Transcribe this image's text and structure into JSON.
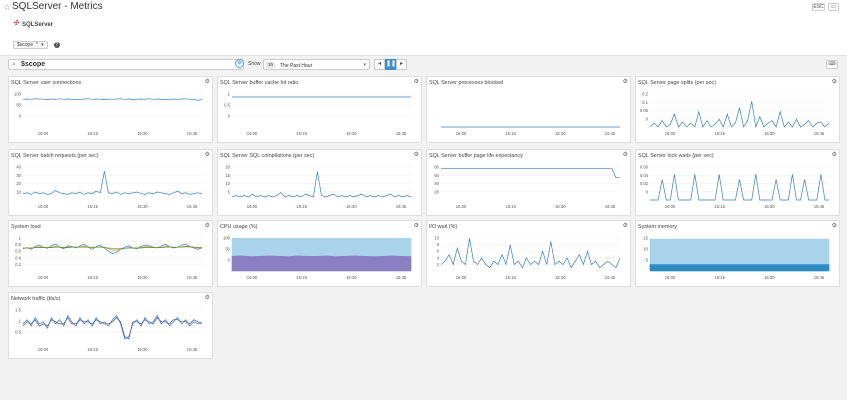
{
  "header": {
    "title": "SQLServer - Metrics",
    "esc_label": "ESC",
    "logo_text": "SQLServer",
    "template_variable": "$scope",
    "template_value": "*"
  },
  "toolbar": {
    "search_value": "$scope",
    "show_label": "Show",
    "time_badge": "1h",
    "time_range": "The Past Hour"
  },
  "widgets": [
    {
      "title": "SQL Server user connections",
      "yticks": [
        "100",
        "50",
        "0"
      ],
      "ylim": [
        0,
        130
      ],
      "series": [
        {
          "color": "#3b7fb6",
          "values": [
            100,
            101,
            100,
            102,
            101,
            100,
            99,
            101,
            100,
            102,
            100,
            101,
            100,
            99,
            100,
            101,
            102,
            100,
            101,
            100,
            99,
            101,
            100,
            101,
            102,
            100,
            101,
            99,
            100,
            101,
            100,
            102,
            100,
            101,
            100,
            99,
            100,
            101,
            100,
            101,
            102,
            100,
            99,
            96,
            100
          ]
        }
      ]
    },
    {
      "title": "SQL Server buffer cache hit ratio",
      "yticks": [
        "1",
        "0.5",
        "0"
      ],
      "ylim": [
        0,
        1.2
      ],
      "series": [
        {
          "color": "#3b7fb6",
          "values": [
            1,
            1,
            1,
            1,
            1,
            1,
            1,
            1,
            1,
            1,
            1,
            1,
            1,
            1,
            1,
            1,
            1,
            1,
            1,
            1
          ]
        }
      ]
    },
    {
      "title": "SQL Server processes blocked",
      "yticks": [],
      "ylim": [
        0,
        1
      ],
      "series": [
        {
          "color": "#3b7fb6",
          "values": [
            0,
            0,
            0,
            0,
            0,
            0,
            0,
            0,
            0,
            0,
            0,
            0,
            0,
            0,
            0,
            0,
            0,
            0,
            0,
            0
          ]
        }
      ]
    },
    {
      "title": "SQL Server page splits (per sec)",
      "yticks": [
        "0.2",
        "0.1",
        "0.05",
        "0"
      ],
      "ylim": [
        0,
        0.28
      ],
      "series": [
        {
          "color": "#3b7fb6",
          "values": [
            0,
            0.03,
            0,
            0.05,
            0,
            0.02,
            0.1,
            0,
            0.04,
            0,
            0.03,
            0,
            0.12,
            0,
            0.05,
            0,
            0.02,
            0.06,
            0,
            0.1,
            0,
            0.03,
            0.15,
            0,
            0.05,
            0.2,
            0,
            0.08,
            0,
            0.03,
            0.05,
            0,
            0.12,
            0,
            0.04,
            0,
            0.06,
            0,
            0.02,
            0.05,
            0,
            0.03,
            0.04,
            0,
            0.03
          ]
        }
      ]
    },
    {
      "title": "SQL Server batch requests (per sec)",
      "yticks": [
        "40",
        "30",
        "20",
        "10"
      ],
      "ylim": [
        0,
        45
      ],
      "series": [
        {
          "color": "#3b7fb6",
          "values": [
            8,
            9,
            7,
            10,
            8,
            9,
            7,
            8,
            12,
            9,
            8,
            7,
            9,
            8,
            10,
            7,
            9,
            8,
            11,
            9,
            36,
            9,
            8,
            10,
            7,
            9,
            8,
            9,
            10,
            8,
            7,
            9,
            8,
            10,
            9,
            8,
            7,
            9,
            11,
            8,
            9,
            7,
            8,
            9,
            8
          ]
        }
      ]
    },
    {
      "title": "SQL Server SQL compilations (per sec)",
      "yticks": [
        "20",
        "15",
        "10",
        "5"
      ],
      "ylim": [
        0,
        24
      ],
      "series": [
        {
          "color": "#3b7fb6",
          "values": [
            2,
            3,
            2,
            3,
            2,
            4,
            2,
            3,
            2,
            3,
            2,
            3,
            5,
            2,
            3,
            2,
            3,
            2,
            4,
            3,
            2,
            19,
            3,
            2,
            3,
            4,
            2,
            3,
            2,
            3,
            2,
            3,
            4,
            2,
            3,
            2,
            3,
            2,
            3,
            4,
            2,
            3,
            2,
            3,
            2
          ]
        }
      ]
    },
    {
      "title": "SQL Server buffer page life expectancy",
      "yticks": [
        "80",
        "60",
        "40",
        "20"
      ],
      "ylim": [
        0,
        100
      ],
      "series": [
        {
          "color": "#3b7fb6",
          "values": [
            87,
            87,
            87,
            87,
            87,
            87,
            87,
            87,
            87,
            87,
            87,
            87,
            87,
            87,
            87,
            87,
            87,
            87,
            87,
            87,
            87,
            87,
            87,
            87,
            87,
            87,
            87,
            87,
            87,
            87,
            87,
            87,
            87,
            87,
            87,
            87,
            87,
            87,
            87,
            87,
            87,
            87,
            87,
            62,
            62
          ]
        }
      ]
    },
    {
      "title": "SQL Server lock waits (per sec)",
      "yticks": [
        "0.06",
        "0.04",
        "0.02",
        "0"
      ],
      "ylim": [
        0,
        0.07
      ],
      "series": [
        {
          "color": "#3b7fb6",
          "values": [
            0,
            0,
            0,
            0.04,
            0,
            0,
            0.05,
            0,
            0,
            0,
            0,
            0.05,
            0,
            0,
            0,
            0,
            0,
            0.05,
            0,
            0,
            0,
            0,
            0.04,
            0,
            0,
            0,
            0.05,
            0,
            0,
            0,
            0,
            0.04,
            0,
            0,
            0,
            0.05,
            0,
            0,
            0.04,
            0,
            0,
            0,
            0.05,
            0,
            0
          ]
        }
      ]
    },
    {
      "title": "System load",
      "yticks": [
        "1",
        "0.8",
        "0.6",
        "0.4",
        "0.2"
      ],
      "ylim": [
        0,
        1
      ],
      "series": [
        {
          "color": "#3b7fb6",
          "values": [
            0.62,
            0.65,
            0.6,
            0.68,
            0.72,
            0.66,
            0.63,
            0.7,
            0.75,
            0.66,
            0.62,
            0.7,
            0.68,
            0.64,
            0.7,
            0.74,
            0.66,
            0.6,
            0.68,
            0.72,
            0.64,
            0.55,
            0.48,
            0.52,
            0.6,
            0.66,
            0.7,
            0.64,
            0.62,
            0.68,
            0.72,
            0.7,
            0.66,
            0.64,
            0.7,
            0.74,
            0.68,
            0.64,
            0.66,
            0.72,
            0.75,
            0.68,
            0.64,
            0.6,
            0.64
          ]
        },
        {
          "color": "#e57f2c",
          "values": [
            0.63,
            0.64,
            0.63,
            0.65,
            0.67,
            0.66,
            0.65,
            0.66,
            0.68,
            0.67,
            0.65,
            0.66,
            0.67,
            0.66,
            0.67,
            0.68,
            0.67,
            0.65,
            0.66,
            0.67,
            0.66,
            0.62,
            0.58,
            0.58,
            0.6,
            0.63,
            0.65,
            0.64,
            0.64,
            0.65,
            0.67,
            0.67,
            0.66,
            0.65,
            0.66,
            0.68,
            0.67,
            0.66,
            0.66,
            0.67,
            0.69,
            0.68,
            0.66,
            0.64,
            0.64
          ]
        },
        {
          "color": "#4a9a3f",
          "values": [
            0.64,
            0.64,
            0.64,
            0.65,
            0.65,
            0.65,
            0.65,
            0.65,
            0.66,
            0.66,
            0.65,
            0.65,
            0.66,
            0.66,
            0.66,
            0.66,
            0.66,
            0.66,
            0.66,
            0.66,
            0.65,
            0.64,
            0.63,
            0.62,
            0.62,
            0.63,
            0.64,
            0.64,
            0.64,
            0.64,
            0.65,
            0.65,
            0.65,
            0.65,
            0.65,
            0.66,
            0.66,
            0.66,
            0.66,
            0.66,
            0.67,
            0.67,
            0.66,
            0.66,
            0.65
          ]
        }
      ]
    },
    {
      "title": "CPU usage (%)",
      "yticks": [
        "100",
        "50",
        "0"
      ],
      "ylim": [
        0,
        110
      ],
      "area": true,
      "series": [
        {
          "color": "#8a7fc0",
          "values": [
            45,
            46,
            44,
            45,
            46,
            45,
            44,
            46,
            45,
            45,
            46,
            44,
            45,
            46,
            45,
            44,
            45,
            46,
            45,
            44
          ]
        },
        {
          "color": "#a9d3ea",
          "values": [
            100,
            100,
            100,
            100,
            100,
            100,
            100,
            100,
            100,
            100,
            100,
            100,
            100,
            100,
            100,
            100,
            100,
            100,
            100,
            100
          ]
        }
      ]
    },
    {
      "title": "I/O wait (%)",
      "yticks": [
        "10",
        "8",
        "6",
        "4",
        "2"
      ],
      "ylim": [
        0,
        11
      ],
      "series": [
        {
          "color": "#3b7fb6",
          "values": [
            2,
            3,
            5,
            2,
            7,
            3,
            2,
            10,
            3,
            2,
            4,
            2,
            1,
            3,
            2,
            5,
            2,
            8,
            2,
            3,
            1,
            4,
            2,
            3,
            2,
            6,
            2,
            9,
            2,
            3,
            2,
            4,
            1,
            3,
            5,
            2,
            6,
            2,
            3,
            1,
            2,
            3,
            2,
            1,
            4
          ]
        }
      ]
    },
    {
      "title": "System memory",
      "yticks": [
        "15",
        "10",
        "5"
      ],
      "ylim": [
        0,
        17
      ],
      "area": true,
      "series": [
        {
          "color": "#2b8cc4",
          "values": [
            3,
            3,
            3,
            3,
            3,
            3,
            3,
            3,
            3,
            3,
            3,
            3,
            3,
            3,
            3,
            3,
            3,
            3,
            3,
            3
          ]
        },
        {
          "color": "#a9d3ea",
          "values": [
            15,
            15,
            15,
            15,
            15,
            15,
            15,
            15,
            15,
            15,
            15,
            15,
            15,
            15,
            15,
            15,
            15,
            15,
            15,
            15
          ]
        }
      ]
    },
    {
      "title": "Network traffic (kb/s)",
      "yticks": [
        "1.5",
        "1",
        "0.5"
      ],
      "ylim": [
        0,
        1.7
      ],
      "series": [
        {
          "color": "#3b7fb6",
          "values": [
            0.9,
            1.1,
            0.8,
            1.2,
            0.9,
            1.0,
            0.7,
            1.2,
            0.9,
            1.1,
            0.8,
            1.3,
            1.0,
            0.8,
            1.2,
            0.9,
            1.1,
            0.8,
            1.2,
            0.9,
            1.0,
            0.8,
            1.1,
            1.3,
            0.9,
            0.2,
            0.3,
            0.9,
            1.1,
            0.8,
            1.2,
            0.9,
            1.0,
            1.3,
            0.9,
            1.1,
            0.8,
            1.0,
            1.2,
            0.9,
            1.1,
            0.8,
            1.0,
            0.9,
            1.0
          ]
        },
        {
          "color": "#4b4f9e",
          "values": [
            0.8,
            1.0,
            0.9,
            1.1,
            0.8,
            0.9,
            0.8,
            1.1,
            1.0,
            0.9,
            0.9,
            1.2,
            0.9,
            0.9,
            1.1,
            1.0,
            1.0,
            0.9,
            1.1,
            1.0,
            0.9,
            0.9,
            1.0,
            1.2,
            1.0,
            0.3,
            0.2,
            1.0,
            1.0,
            0.9,
            1.1,
            1.0,
            0.9,
            1.2,
            1.0,
            1.0,
            0.9,
            1.1,
            1.1,
            1.0,
            1.0,
            0.9,
            1.1,
            1.0,
            0.9
          ]
        }
      ]
    }
  ],
  "x_ticks": [
    "16:00",
    "16:15",
    "16:30",
    "16:45"
  ]
}
